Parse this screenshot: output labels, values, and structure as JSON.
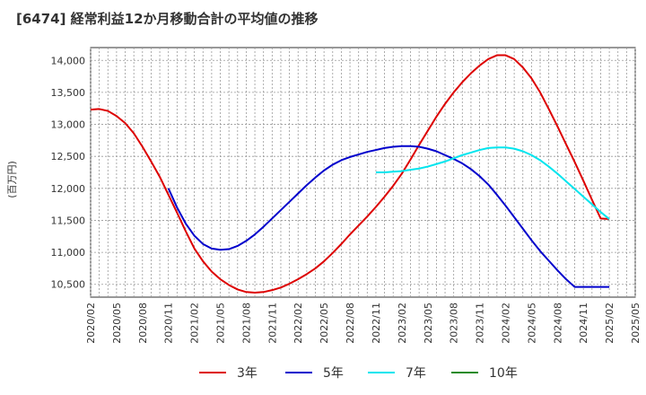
{
  "chart_data": {
    "type": "line",
    "title": "[6474]  経常利益12か月移動合計の平均値の推移",
    "ylabel": "(百万円)",
    "xlabel": "",
    "ylim": [
      10300,
      14200
    ],
    "y_ticks": [
      10500,
      11000,
      11500,
      12000,
      12500,
      13000,
      13500,
      14000
    ],
    "y_tick_labels": [
      "10,500",
      "11,000",
      "11,500",
      "12,000",
      "12,500",
      "13,000",
      "13,500",
      "14,000"
    ],
    "x_tick_labels": [
      "2020/02",
      "2020/05",
      "2020/08",
      "2020/11",
      "2021/02",
      "2021/05",
      "2021/08",
      "2021/11",
      "2022/02",
      "2022/05",
      "2022/08",
      "2022/11",
      "2023/02",
      "2023/05",
      "2023/08",
      "2023/11",
      "2024/02",
      "2024/05",
      "2024/08",
      "2024/11",
      "2025/02",
      "2025/05"
    ],
    "grid": true,
    "legend_position": "bottom",
    "series": [
      {
        "name": "3年",
        "color": "#dd0000",
        "x": [
          "2020/02",
          "2020/03",
          "2020/04",
          "2020/05",
          "2020/06",
          "2020/07",
          "2020/08",
          "2020/09",
          "2020/10",
          "2020/11",
          "2020/12",
          "2021/01",
          "2021/02",
          "2021/03",
          "2021/04",
          "2021/05",
          "2021/06",
          "2021/07",
          "2021/08",
          "2021/09",
          "2021/10",
          "2021/11",
          "2021/12",
          "2022/01",
          "2022/02",
          "2022/03",
          "2022/04",
          "2022/05",
          "2022/06",
          "2022/07",
          "2022/08",
          "2022/09",
          "2022/10",
          "2022/11",
          "2022/12",
          "2023/01",
          "2023/02",
          "2023/03",
          "2023/04",
          "2023/05",
          "2023/06",
          "2023/07",
          "2023/08",
          "2023/09",
          "2023/10",
          "2023/11",
          "2023/12",
          "2024/01",
          "2024/02",
          "2024/03",
          "2024/04",
          "2024/05",
          "2024/06",
          "2024/07",
          "2024/08",
          "2024/09",
          "2024/10",
          "2024/11",
          "2024/12",
          "2025/01",
          "2025/02"
        ],
        "values": [
          13230,
          13240,
          13210,
          13130,
          13020,
          12860,
          12650,
          12420,
          12180,
          11900,
          11620,
          11330,
          11060,
          10860,
          10700,
          10580,
          10490,
          10420,
          10380,
          10370,
          10380,
          10410,
          10450,
          10510,
          10580,
          10660,
          10750,
          10860,
          10990,
          11130,
          11280,
          11420,
          11560,
          11710,
          11870,
          12040,
          12230,
          12450,
          12680,
          12900,
          13120,
          13320,
          13500,
          13660,
          13800,
          13920,
          14020,
          14080,
          14080,
          14020,
          13890,
          13720,
          13500,
          13240,
          12970,
          12690,
          12410,
          12120,
          11820,
          11530,
          11520
        ]
      },
      {
        "name": "5年",
        "color": "#0000cc",
        "x": [
          "2020/11",
          "2020/12",
          "2021/01",
          "2021/02",
          "2021/03",
          "2021/04",
          "2021/05",
          "2021/06",
          "2021/07",
          "2021/08",
          "2021/09",
          "2021/10",
          "2021/11",
          "2021/12",
          "2022/01",
          "2022/02",
          "2022/03",
          "2022/04",
          "2022/05",
          "2022/06",
          "2022/07",
          "2022/08",
          "2022/09",
          "2022/10",
          "2022/11",
          "2022/12",
          "2023/01",
          "2023/02",
          "2023/03",
          "2023/04",
          "2023/05",
          "2023/06",
          "2023/07",
          "2023/08",
          "2023/09",
          "2023/10",
          "2023/11",
          "2023/12",
          "2024/01",
          "2024/02",
          "2024/03",
          "2024/04",
          "2024/05",
          "2024/06",
          "2024/07",
          "2024/08",
          "2024/09",
          "2024/10",
          "2024/11",
          "2024/12",
          "2025/01",
          "2025/02"
        ],
        "values": [
          12000,
          11700,
          11450,
          11260,
          11130,
          11060,
          11040,
          11050,
          11100,
          11180,
          11280,
          11400,
          11530,
          11660,
          11790,
          11920,
          12050,
          12170,
          12280,
          12370,
          12440,
          12490,
          12530,
          12570,
          12600,
          12630,
          12650,
          12660,
          12660,
          12650,
          12620,
          12580,
          12520,
          12460,
          12390,
          12300,
          12190,
          12060,
          11900,
          11730,
          11550,
          11370,
          11190,
          11020,
          10870,
          10720,
          10580,
          10460,
          10460,
          10460,
          10460,
          10460
        ]
      },
      {
        "name": "7年",
        "color": "#00e5ee",
        "x": [
          "2022/11",
          "2022/12",
          "2023/01",
          "2023/02",
          "2023/03",
          "2023/04",
          "2023/05",
          "2023/06",
          "2023/07",
          "2023/08",
          "2023/09",
          "2023/10",
          "2023/11",
          "2023/12",
          "2024/01",
          "2024/02",
          "2024/03",
          "2024/04",
          "2024/05",
          "2024/06",
          "2024/07",
          "2024/08",
          "2024/09",
          "2024/10",
          "2024/11",
          "2024/12",
          "2025/01",
          "2025/02"
        ],
        "values": [
          12250,
          12250,
          12260,
          12270,
          12290,
          12310,
          12340,
          12380,
          12420,
          12470,
          12520,
          12560,
          12600,
          12630,
          12640,
          12640,
          12620,
          12580,
          12520,
          12440,
          12340,
          12230,
          12110,
          11990,
          11870,
          11750,
          11630,
          11520
        ]
      },
      {
        "name": "10年",
        "color": "#228b22",
        "x": [],
        "values": []
      }
    ]
  }
}
